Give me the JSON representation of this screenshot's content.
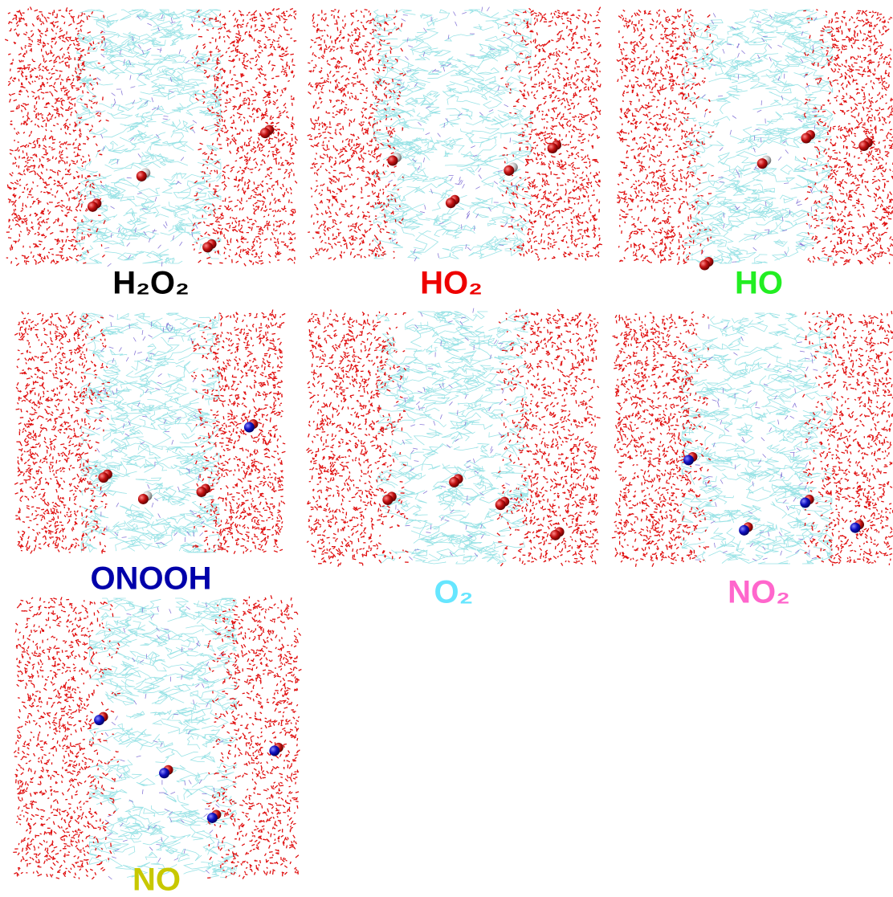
{
  "panels": [
    {
      "label": "H₂O₂",
      "color": "#000000"
    },
    {
      "label": "HO₂",
      "color": "#ee0000"
    },
    {
      "label": "HO",
      "color": "#22ee22"
    },
    {
      "label": "ONOOH",
      "color": "#0000aa"
    },
    {
      "label": "O₂",
      "color": "#66e6ff"
    },
    {
      "label": "NO₂",
      "color": "#ff66cc"
    },
    {
      "label": "NO",
      "color": "#c8c800"
    }
  ]
}
